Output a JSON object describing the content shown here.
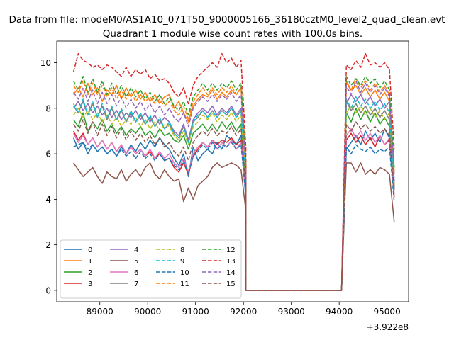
{
  "suptitle": "Data from file: modeM0/AS1A10_071T50_9000005166_36180cztM0_level2_quad_clean.evt",
  "chart_data": {
    "type": "line",
    "title": "Quadrant 1 module wise count rates with 100.0s bins.",
    "xlabel": "",
    "ylabel": "",
    "x_offset_label": "+3.922e8",
    "x_offset": 392200000,
    "xlim": [
      88100,
      95450
    ],
    "ylim": [
      -0.5,
      10.95
    ],
    "xticks": [
      89000,
      90000,
      91000,
      92000,
      93000,
      94000,
      95000
    ],
    "xtick_labels": [
      "89000",
      "90000",
      "91000",
      "92000",
      "93000",
      "94000",
      "95000"
    ],
    "yticks": [
      0,
      2,
      4,
      6,
      8,
      10
    ],
    "ytick_labels": [
      "0",
      "2",
      "4",
      "6",
      "8",
      "10"
    ],
    "grid": false,
    "legend": {
      "location": "lower-left",
      "columns": 4
    },
    "segments": [
      {
        "start": 88450,
        "step": 100,
        "n": 37
      },
      {
        "start": 92050,
        "step": 100,
        "n": 21
      },
      {
        "start": 94150,
        "step": 100,
        "n": 11
      }
    ],
    "series": [
      {
        "name": "0",
        "color": "#1f77b4",
        "dashed": false,
        "values": [
          6.7,
          6.2,
          6.5,
          6.0,
          6.4,
          6.1,
          6.3,
          6.0,
          6.2,
          5.9,
          6.3,
          6.0,
          6.4,
          6.1,
          6.5,
          6.2,
          6.6,
          6.3,
          6.7,
          6.4,
          6.2,
          5.8,
          5.5,
          6.0,
          5.0,
          6.3,
          5.7,
          6.0,
          6.2,
          6.0,
          6.5,
          6.2,
          6.8,
          6.6,
          6.4,
          6.8,
          4.0,
          0,
          0,
          0,
          0,
          0,
          0,
          0,
          0,
          0,
          0,
          0,
          0,
          0,
          0,
          0,
          0,
          0,
          0,
          0,
          0,
          0,
          6.2,
          6.5,
          6.8,
          6.4,
          7.0,
          6.6,
          6.9,
          6.5,
          7.1,
          6.7,
          4.5
        ]
      },
      {
        "name": "1",
        "color": "#ff7f0e",
        "dashed": false,
        "values": [
          8.6,
          8.9,
          8.5,
          9.1,
          8.6,
          8.9,
          8.3,
          8.8,
          8.6,
          9.0,
          8.4,
          8.9,
          8.5,
          8.8,
          8.4,
          8.7,
          8.3,
          8.6,
          8.2,
          8.5,
          8.6,
          8.0,
          8.3,
          7.8,
          7.4,
          8.1,
          8.4,
          8.6,
          8.5,
          8.8,
          8.4,
          8.7,
          8.5,
          8.8,
          8.6,
          8.9,
          5.5,
          0,
          0,
          0,
          0,
          0,
          0,
          0,
          0,
          0,
          0,
          0,
          0,
          0,
          0,
          0,
          0,
          0,
          0,
          0,
          0,
          0,
          9.2,
          8.8,
          9.0,
          8.6,
          8.9,
          8.5,
          8.8,
          8.4,
          8.7,
          8.3,
          4.6
        ]
      },
      {
        "name": "2",
        "color": "#2ca02c",
        "dashed": false,
        "values": [
          7.5,
          7.2,
          7.8,
          7.0,
          7.4,
          7.1,
          7.5,
          7.0,
          7.3,
          6.9,
          7.2,
          6.8,
          7.1,
          6.9,
          7.2,
          6.8,
          7.0,
          6.7,
          7.1,
          6.8,
          6.9,
          6.6,
          6.5,
          6.8,
          6.2,
          6.9,
          7.1,
          7.3,
          7.0,
          7.3,
          7.0,
          7.4,
          7.1,
          7.4,
          7.0,
          7.3,
          4.7,
          0,
          0,
          0,
          0,
          0,
          0,
          0,
          0,
          0,
          0,
          0,
          0,
          0,
          0,
          0,
          0,
          0,
          0,
          0,
          0,
          0,
          7.8,
          7.4,
          8.0,
          7.5,
          7.9,
          7.4,
          7.8,
          7.3,
          7.6,
          7.2,
          4.6
        ]
      },
      {
        "name": "3",
        "color": "#d62728",
        "dashed": false,
        "values": [
          7.0,
          6.6,
          6.9,
          6.4,
          6.7,
          6.3,
          6.6,
          6.2,
          6.5,
          6.1,
          6.4,
          6.0,
          6.3,
          6.0,
          6.2,
          5.9,
          6.1,
          5.8,
          6.0,
          5.7,
          5.8,
          5.4,
          5.2,
          5.6,
          5.1,
          5.9,
          6.2,
          6.5,
          6.3,
          6.6,
          6.4,
          6.6,
          6.5,
          6.7,
          6.4,
          6.6,
          4.3,
          0,
          0,
          0,
          0,
          0,
          0,
          0,
          0,
          0,
          0,
          0,
          0,
          0,
          0,
          0,
          0,
          0,
          0,
          0,
          0,
          0,
          6.6,
          6.9,
          6.5,
          6.8,
          6.4,
          6.7,
          6.3,
          6.8,
          6.4,
          6.6,
          4.1
        ]
      },
      {
        "name": "4",
        "color": "#9467bd",
        "dashed": false,
        "values": [
          8.0,
          8.3,
          7.9,
          8.2,
          7.8,
          8.1,
          7.7,
          8.0,
          7.6,
          7.9,
          7.5,
          7.8,
          7.6,
          7.9,
          7.5,
          7.8,
          7.4,
          7.7,
          7.3,
          7.6,
          7.4,
          7.0,
          6.8,
          7.3,
          6.6,
          7.5,
          7.8,
          8.0,
          7.8,
          8.1,
          7.7,
          8.0,
          7.8,
          8.1,
          7.7,
          8.0,
          5.0,
          0,
          0,
          0,
          0,
          0,
          0,
          0,
          0,
          0,
          0,
          0,
          0,
          0,
          0,
          0,
          0,
          0,
          0,
          0,
          0,
          0,
          8.2,
          8.6,
          8.3,
          8.6,
          8.2,
          8.5,
          8.1,
          8.4,
          8.0,
          8.3,
          4.8
        ]
      },
      {
        "name": "5",
        "color": "#8c564b",
        "dashed": false,
        "values": [
          5.6,
          5.3,
          5.0,
          5.2,
          5.4,
          5.0,
          4.7,
          5.2,
          5.0,
          4.9,
          5.3,
          4.8,
          5.1,
          5.3,
          5.0,
          5.4,
          5.6,
          5.1,
          4.9,
          5.3,
          5.0,
          4.8,
          4.9,
          3.9,
          4.5,
          4.0,
          4.6,
          4.8,
          5.0,
          5.4,
          5.6,
          5.4,
          5.5,
          5.6,
          5.5,
          5.3,
          3.5,
          0,
          0,
          0,
          0,
          0,
          0,
          0,
          0,
          0,
          0,
          0,
          0,
          0,
          0,
          0,
          0,
          0,
          0,
          0,
          0,
          0,
          5.6,
          5.6,
          5.2,
          5.6,
          5.1,
          5.3,
          5.1,
          5.4,
          5.3,
          5.1,
          3.0
        ]
      },
      {
        "name": "6",
        "color": "#e377c2",
        "dashed": false,
        "values": [
          6.9,
          6.5,
          6.8,
          6.4,
          6.7,
          6.3,
          6.6,
          6.2,
          6.5,
          6.1,
          6.4,
          6.0,
          6.3,
          6.0,
          6.2,
          5.9,
          6.2,
          5.8,
          6.1,
          5.8,
          6.0,
          5.6,
          5.4,
          5.8,
          5.2,
          6.0,
          6.3,
          6.5,
          6.3,
          6.6,
          6.2,
          6.5,
          6.3,
          6.6,
          6.2,
          6.5,
          4.2,
          0,
          0,
          0,
          0,
          0,
          0,
          0,
          0,
          0,
          0,
          0,
          0,
          0,
          0,
          0,
          0,
          0,
          0,
          0,
          0,
          0,
          6.8,
          7.1,
          6.7,
          7.0,
          6.6,
          6.9,
          6.5,
          6.8,
          6.4,
          6.7,
          4.2
        ]
      },
      {
        "name": "7",
        "color": "#7f7f7f",
        "dashed": false,
        "values": [
          8.1,
          7.8,
          8.3,
          7.7,
          8.2,
          7.6,
          8.1,
          7.5,
          8.0,
          7.5,
          7.9,
          7.4,
          7.8,
          7.4,
          7.7,
          7.3,
          7.6,
          7.2,
          7.5,
          7.1,
          7.3,
          6.9,
          6.7,
          7.2,
          6.5,
          7.4,
          7.6,
          7.9,
          7.6,
          7.9,
          7.6,
          7.9,
          7.7,
          8.0,
          7.6,
          7.9,
          5.0,
          0,
          0,
          0,
          0,
          0,
          0,
          0,
          0,
          0,
          0,
          0,
          0,
          0,
          0,
          0,
          0,
          0,
          0,
          0,
          0,
          0,
          8.3,
          7.9,
          8.2,
          7.8,
          8.1,
          7.7,
          8.0,
          7.6,
          7.9,
          7.5,
          4.7
        ]
      },
      {
        "name": "8",
        "color": "#bcbd22",
        "dashed": true,
        "values": [
          7.7,
          8.0,
          7.6,
          7.9,
          7.5,
          7.8,
          7.4,
          7.7,
          7.3,
          7.6,
          7.2,
          7.5,
          7.3,
          7.6,
          7.2,
          7.5,
          7.1,
          7.4,
          7.0,
          7.3,
          7.2,
          6.8,
          6.6,
          7.0,
          6.4,
          7.2,
          7.4,
          7.7,
          7.5,
          7.8,
          7.4,
          7.7,
          7.5,
          7.8,
          7.4,
          7.7,
          4.9,
          0,
          0,
          0,
          0,
          0,
          0,
          0,
          0,
          0,
          0,
          0,
          0,
          0,
          0,
          0,
          0,
          0,
          0,
          0,
          0,
          0,
          7.8,
          8.1,
          7.8,
          8.1,
          7.7,
          8.0,
          7.6,
          7.9,
          7.5,
          7.8,
          4.6
        ]
      },
      {
        "name": "9",
        "color": "#17becf",
        "dashed": true,
        "values": [
          8.2,
          7.8,
          8.4,
          7.7,
          8.3,
          7.6,
          8.2,
          7.6,
          8.1,
          7.5,
          8.0,
          7.4,
          7.9,
          7.4,
          7.8,
          7.3,
          7.7,
          7.2,
          7.6,
          7.1,
          7.4,
          6.9,
          6.7,
          7.2,
          6.5,
          7.4,
          7.7,
          7.9,
          7.6,
          7.9,
          7.6,
          7.9,
          7.7,
          8.0,
          7.6,
          7.9,
          5.0,
          0,
          0,
          0,
          0,
          0,
          0,
          0,
          0,
          0,
          0,
          0,
          0,
          0,
          0,
          0,
          0,
          0,
          0,
          0,
          0,
          0,
          8.4,
          8.0,
          8.5,
          8.1,
          8.4,
          8.0,
          8.3,
          7.9,
          8.2,
          7.8,
          4.8
        ]
      },
      {
        "name": "10",
        "color": "#1f77b4",
        "dashed": true,
        "values": [
          6.3,
          6.4,
          6.5,
          6.2,
          6.4,
          6.1,
          6.3,
          6.0,
          6.2,
          5.9,
          6.2,
          5.9,
          6.1,
          5.8,
          6.1,
          5.8,
          6.0,
          5.7,
          6.0,
          5.7,
          5.8,
          5.5,
          5.3,
          5.7,
          5.1,
          5.9,
          6.1,
          6.4,
          6.2,
          6.5,
          6.2,
          6.4,
          6.3,
          6.5,
          6.2,
          6.4,
          4.1,
          0,
          0,
          0,
          0,
          0,
          0,
          0,
          0,
          0,
          0,
          0,
          0,
          0,
          0,
          0,
          0,
          0,
          0,
          0,
          0,
          0,
          6.3,
          6.0,
          6.4,
          6.2,
          6.1,
          6.3,
          6.0,
          6.2,
          6.1,
          6.3,
          3.9
        ]
      },
      {
        "name": "11",
        "color": "#ff7f0e",
        "dashed": true,
        "values": [
          9.0,
          8.7,
          9.2,
          8.6,
          9.1,
          8.6,
          9.0,
          8.5,
          8.9,
          8.4,
          8.8,
          8.4,
          8.7,
          8.3,
          8.6,
          8.3,
          8.5,
          8.2,
          8.4,
          8.1,
          8.3,
          7.9,
          7.7,
          8.1,
          7.5,
          8.3,
          8.6,
          8.9,
          8.6,
          8.9,
          8.6,
          8.9,
          8.7,
          9.0,
          8.6,
          8.9,
          5.6,
          0,
          0,
          0,
          0,
          0,
          0,
          0,
          0,
          0,
          0,
          0,
          0,
          0,
          0,
          0,
          0,
          0,
          0,
          0,
          0,
          0,
          9.1,
          8.8,
          9.3,
          8.9,
          9.2,
          8.8,
          9.1,
          8.7,
          9.0,
          8.6,
          5.2
        ]
      },
      {
        "name": "12",
        "color": "#2ca02c",
        "dashed": true,
        "values": [
          9.2,
          8.8,
          9.4,
          8.7,
          9.3,
          8.7,
          9.2,
          8.6,
          9.1,
          8.6,
          9.0,
          8.5,
          8.9,
          8.5,
          8.8,
          8.4,
          8.7,
          8.3,
          8.6,
          8.2,
          8.5,
          8.1,
          7.9,
          8.3,
          7.7,
          8.5,
          8.8,
          9.1,
          8.8,
          9.1,
          8.8,
          9.1,
          8.9,
          9.2,
          8.8,
          9.1,
          5.7,
          0,
          0,
          0,
          0,
          0,
          0,
          0,
          0,
          0,
          0,
          0,
          0,
          0,
          0,
          0,
          0,
          0,
          0,
          0,
          0,
          0,
          9.4,
          9.0,
          9.3,
          9.0,
          9.4,
          9.1,
          9.3,
          8.9,
          9.2,
          8.8,
          5.4
        ]
      },
      {
        "name": "13",
        "color": "#d62728",
        "dashed": true,
        "values": [
          9.6,
          10.4,
          10.1,
          10.0,
          9.8,
          9.9,
          9.7,
          9.9,
          9.8,
          9.6,
          9.4,
          9.8,
          9.4,
          9.7,
          9.5,
          9.7,
          9.3,
          9.5,
          9.2,
          9.3,
          9.1,
          8.7,
          8.5,
          8.9,
          8.2,
          9.0,
          9.4,
          9.6,
          9.8,
          10.0,
          9.8,
          10.4,
          10.0,
          10.2,
          9.8,
          10.1,
          6.3,
          0,
          0,
          0,
          0,
          0,
          0,
          0,
          0,
          0,
          0,
          0,
          0,
          0,
          0,
          0,
          0,
          0,
          0,
          0,
          0,
          0,
          9.9,
          9.7,
          10.1,
          9.8,
          10.4,
          9.9,
          10.0,
          9.8,
          10.0,
          9.7,
          6.2
        ]
      },
      {
        "name": "14",
        "color": "#9467bd",
        "dashed": true,
        "values": [
          8.7,
          8.4,
          8.9,
          8.3,
          8.8,
          8.2,
          8.7,
          8.2,
          8.6,
          8.1,
          8.5,
          8.0,
          8.4,
          8.0,
          8.3,
          7.9,
          8.2,
          7.8,
          8.1,
          7.7,
          8.0,
          7.6,
          7.4,
          7.8,
          7.2,
          8.0,
          8.3,
          8.5,
          8.3,
          8.6,
          8.3,
          8.6,
          8.4,
          8.7,
          8.3,
          8.6,
          5.4,
          0,
          0,
          0,
          0,
          0,
          0,
          0,
          0,
          0,
          0,
          0,
          0,
          0,
          0,
          0,
          0,
          0,
          0,
          0,
          0,
          0,
          9.0,
          8.6,
          9.2,
          8.7,
          9.1,
          8.7,
          9.0,
          8.6,
          8.9,
          8.5,
          5.1
        ]
      },
      {
        "name": "15",
        "color": "#8c564b",
        "dashed": true,
        "values": [
          7.3,
          7.0,
          7.5,
          6.9,
          7.4,
          6.8,
          7.3,
          6.8,
          7.2,
          6.7,
          7.1,
          6.6,
          7.0,
          6.6,
          6.9,
          6.5,
          6.8,
          6.4,
          6.7,
          6.3,
          6.5,
          6.1,
          5.9,
          6.3,
          5.7,
          6.5,
          6.8,
          7.0,
          6.8,
          7.1,
          6.8,
          7.0,
          6.9,
          7.2,
          6.8,
          7.1,
          4.6,
          0,
          0,
          0,
          0,
          0,
          0,
          0,
          0,
          0,
          0,
          0,
          0,
          0,
          0,
          0,
          0,
          0,
          0,
          0,
          0,
          0,
          7.3,
          7.0,
          7.4,
          7.1,
          7.3,
          7.0,
          7.2,
          6.9,
          7.1,
          6.8,
          4.4
        ]
      }
    ]
  }
}
